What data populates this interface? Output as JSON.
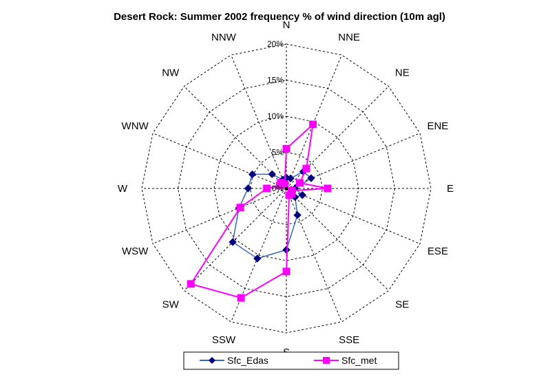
{
  "chart_data": {
    "type": "radar",
    "title": "Desert Rock: Summer 2002 frequency % of wind direction (10m agl)",
    "directions": [
      "N",
      "NNE",
      "NE",
      "ENE",
      "E",
      "ESE",
      "SE",
      "SSE",
      "S",
      "SSW",
      "SW",
      "WSW",
      "W",
      "WNW",
      "NW",
      "NNW"
    ],
    "rings": [
      5,
      10,
      15,
      20
    ],
    "ring_labels": [
      "0%",
      "5%",
      "10%",
      "15%",
      "20%"
    ],
    "rmax": 20,
    "series": [
      {
        "name": "Sfc_Edas",
        "color": "#000080",
        "line_color": "#3366cc",
        "marker": "diamond",
        "values": [
          1.5,
          1.5,
          3.3,
          3.7,
          1.2,
          2.4,
          1.7,
          4.0,
          8.5,
          10.5,
          10.5,
          7.1,
          5.3,
          5.1,
          2.8,
          1.3
        ]
      },
      {
        "name": "Sfc_met",
        "color": "#ff00ff",
        "line_color": "#ff00ff",
        "marker": "square",
        "values": [
          5.5,
          9.6,
          3.9,
          2.0,
          5.7,
          0.8,
          1.0,
          1.0,
          11.5,
          16.4,
          18.7,
          6.9,
          2.7,
          1.0,
          1.1,
          0.6
        ]
      }
    ]
  }
}
